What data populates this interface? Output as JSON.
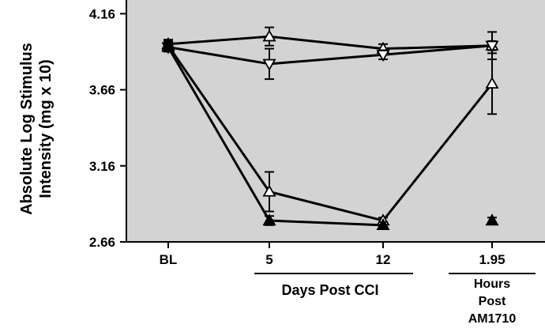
{
  "chart_data": {
    "type": "line",
    "title": "",
    "ylabel": [
      "Absolute Log Stimulus",
      "Intensity (mg x 10)"
    ],
    "categories": [
      "BL",
      "5",
      "12",
      "1.95"
    ],
    "y_ticks": [
      "2.66",
      "3.16",
      "3.66",
      "4.16"
    ],
    "ylim": [
      2.66,
      4.25
    ],
    "x_groups": [
      {
        "label": [
          "Days Post CCI"
        ],
        "span": [
          "5",
          "12"
        ]
      },
      {
        "label": [
          "Hours",
          "Post",
          "AM1710"
        ],
        "span": [
          "1.95"
        ]
      }
    ],
    "grid": false,
    "background": "#d3d3d3",
    "series": [
      {
        "marker": "triangle-up-open",
        "values": [
          3.96,
          4.01,
          3.93,
          3.95
        ],
        "errors": [
          0.03,
          0.06,
          0.03,
          0.03
        ],
        "segments": [
          [
            0,
            1
          ],
          [
            1,
            2
          ],
          [
            2,
            3
          ]
        ]
      },
      {
        "marker": "triangle-down-open",
        "values": [
          3.94,
          3.83,
          3.89,
          3.95
        ],
        "errors": [
          0.03,
          0.1,
          0.03,
          0.09
        ],
        "segments": [
          [
            0,
            1
          ],
          [
            1,
            2
          ],
          [
            2,
            3
          ]
        ]
      },
      {
        "marker": "triangle-up-open",
        "values": [
          3.95,
          2.99,
          2.8,
          3.7
        ],
        "errors": [
          0.03,
          0.13,
          0.02,
          0.2
        ],
        "segments": [
          [
            0,
            1
          ],
          [
            1,
            2
          ],
          [
            2,
            3
          ]
        ]
      },
      {
        "marker": "triangle-up-filled",
        "values": [
          3.94,
          2.8,
          2.77,
          2.8
        ],
        "errors": [
          0.02,
          0.03,
          0.02,
          0.02
        ],
        "segments": [
          [
            0,
            1
          ],
          [
            1,
            2
          ]
        ]
      }
    ]
  }
}
